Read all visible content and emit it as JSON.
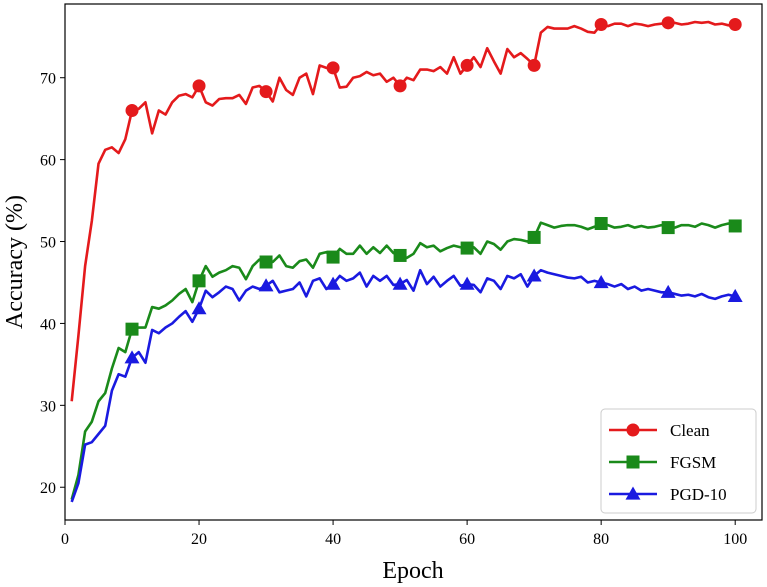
{
  "chart_data": {
    "type": "line",
    "xlabel": "Epoch",
    "ylabel": "Accuracy (%)",
    "xlim": [
      0,
      104
    ],
    "ylim": [
      16,
      79
    ],
    "xticks": [
      0,
      20,
      40,
      60,
      80,
      100
    ],
    "yticks": [
      20,
      30,
      40,
      50,
      60,
      70
    ],
    "grid": false,
    "legend": "bottom-right",
    "marker_epochs": [
      10,
      20,
      30,
      40,
      50,
      60,
      70,
      80,
      90,
      100
    ],
    "x": [
      1,
      2,
      3,
      4,
      5,
      6,
      7,
      8,
      9,
      10,
      11,
      12,
      13,
      14,
      15,
      16,
      17,
      18,
      19,
      20,
      21,
      22,
      23,
      24,
      25,
      26,
      27,
      28,
      29,
      30,
      31,
      32,
      33,
      34,
      35,
      36,
      37,
      38,
      39,
      40,
      41,
      42,
      43,
      44,
      45,
      46,
      47,
      48,
      49,
      50,
      51,
      52,
      53,
      54,
      55,
      56,
      57,
      58,
      59,
      60,
      61,
      62,
      63,
      64,
      65,
      66,
      67,
      68,
      69,
      70,
      71,
      72,
      73,
      74,
      75,
      76,
      77,
      78,
      79,
      80,
      81,
      82,
      83,
      84,
      85,
      86,
      87,
      88,
      89,
      90,
      91,
      92,
      93,
      94,
      95,
      96,
      97,
      98,
      99,
      100
    ],
    "series": [
      {
        "name": "Clean",
        "color": "#e41a1c",
        "marker": "circle",
        "values": [
          30.5,
          38.5,
          47,
          52.5,
          59.5,
          61.2,
          61.5,
          60.8,
          62.5,
          66,
          66.2,
          67,
          63.2,
          66,
          65.5,
          67,
          67.8,
          68,
          67.6,
          69,
          67,
          66.6,
          67.4,
          67.5,
          67.5,
          67.9,
          66.8,
          68.8,
          69,
          68.3,
          67.1,
          70,
          68.5,
          67.9,
          70,
          70.5,
          68,
          71.5,
          71.2,
          71.2,
          68.8,
          68.9,
          70,
          70.2,
          70.7,
          70.3,
          70.5,
          69.5,
          70,
          69,
          70,
          69.7,
          71,
          71,
          70.8,
          71.3,
          70.5,
          72.5,
          70.5,
          71.5,
          72.5,
          71.3,
          73.6,
          72,
          70.5,
          73.5,
          72.5,
          73,
          72.3,
          71.5,
          75.5,
          76.2,
          76,
          76,
          76,
          76.3,
          76,
          75.6,
          75.5,
          76.5,
          76.3,
          76.6,
          76.6,
          76.3,
          76.6,
          76.5,
          76.3,
          76.5,
          76.6,
          76.7,
          76.7,
          76.5,
          76.6,
          76.8,
          76.7,
          76.8,
          76.5,
          76.6,
          76.4,
          76.5
        ]
      },
      {
        "name": "FGSM",
        "color": "#1a8a1a",
        "marker": "square",
        "values": [
          18.5,
          21.5,
          26.8,
          28,
          30.5,
          31.5,
          34.5,
          37,
          36.5,
          39.3,
          39.5,
          39.5,
          42,
          41.8,
          42.2,
          42.8,
          43.6,
          44.2,
          42.6,
          45.2,
          47,
          45.7,
          46.2,
          46.5,
          47,
          46.8,
          45.4,
          47,
          47.8,
          47.5,
          47.5,
          48.3,
          47,
          46.8,
          47.6,
          47.8,
          46.8,
          48.5,
          48.7,
          48.1,
          49.1,
          48.5,
          48.5,
          49.5,
          48.5,
          49.3,
          48.6,
          49.5,
          48.6,
          48.3,
          48,
          48.5,
          49.8,
          49.3,
          49.5,
          48.8,
          49.2,
          49.5,
          49.3,
          49.2,
          49.3,
          48.5,
          50,
          49.7,
          49,
          50,
          50.3,
          50.2,
          50,
          50.5,
          52.3,
          52,
          51.7,
          51.9,
          52,
          52,
          51.8,
          51.5,
          51.8,
          52.2,
          52,
          51.7,
          51.8,
          52,
          51.7,
          51.9,
          51.7,
          51.8,
          52,
          51.7,
          51.7,
          52,
          52,
          51.8,
          52.2,
          52,
          51.7,
          52,
          52.2,
          51.9
        ]
      },
      {
        "name": "PGD-10",
        "color": "#1a1ae0",
        "marker": "triangle",
        "values": [
          18.2,
          20.5,
          25.2,
          25.5,
          26.5,
          27.5,
          31.8,
          33.8,
          33.5,
          35.8,
          36.5,
          35.2,
          39.2,
          38.8,
          39.5,
          40,
          40.8,
          41.5,
          40.2,
          41.8,
          44,
          43.2,
          43.8,
          44.5,
          44.2,
          42.8,
          44,
          44.5,
          44.2,
          44.6,
          45.2,
          43.8,
          44,
          44.2,
          45,
          43.3,
          45.2,
          45.5,
          44.2,
          44.8,
          45.8,
          45.2,
          45.5,
          46.2,
          44.5,
          45.8,
          45.2,
          45.8,
          44.7,
          44.8,
          45.3,
          44,
          46.5,
          44.8,
          45.7,
          44.5,
          45.2,
          45.8,
          44.6,
          44.8,
          44.7,
          43.8,
          45.5,
          45.2,
          44.2,
          45.8,
          45.5,
          46,
          44.5,
          45.8,
          46.5,
          46.2,
          46,
          45.8,
          45.6,
          45.5,
          45.7,
          45,
          45.2,
          45,
          44.8,
          44.5,
          44.8,
          44.2,
          44.5,
          44,
          44.2,
          44,
          43.8,
          43.8,
          43.6,
          43.4,
          43.5,
          43.3,
          43.6,
          43.2,
          43,
          43.3,
          43.5,
          43.3
        ]
      }
    ]
  }
}
